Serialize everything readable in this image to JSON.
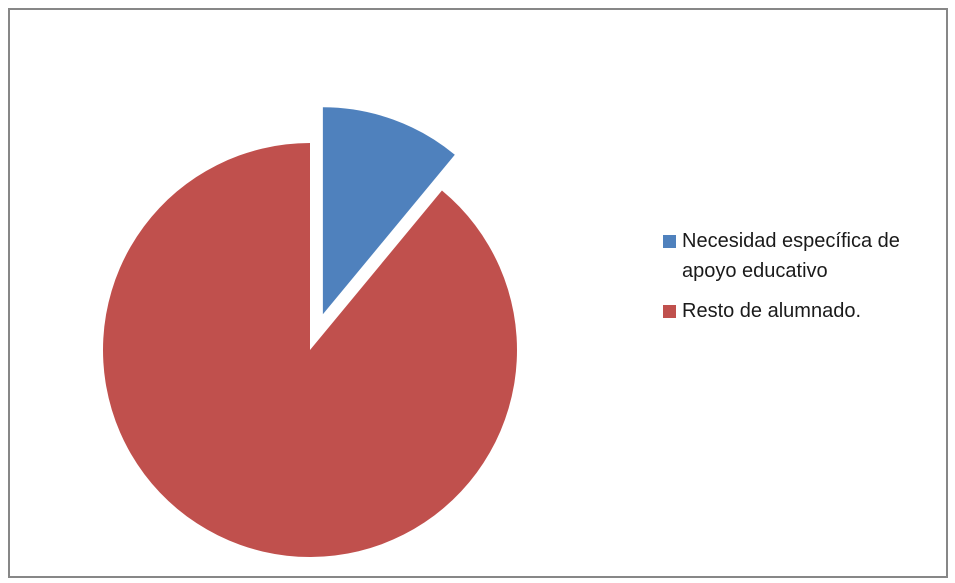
{
  "chart_data": {
    "type": "pie",
    "title": "",
    "legend_position": "right",
    "series": [
      {
        "name": "",
        "slices": [
          {
            "label": "Necesidad específica de apoyo educativo",
            "value": 11,
            "color": "#4F81BD",
            "exploded": true
          },
          {
            "label": "Resto de alumnado.",
            "value": 89,
            "color": "#C0504D",
            "exploded": false
          }
        ]
      }
    ]
  }
}
